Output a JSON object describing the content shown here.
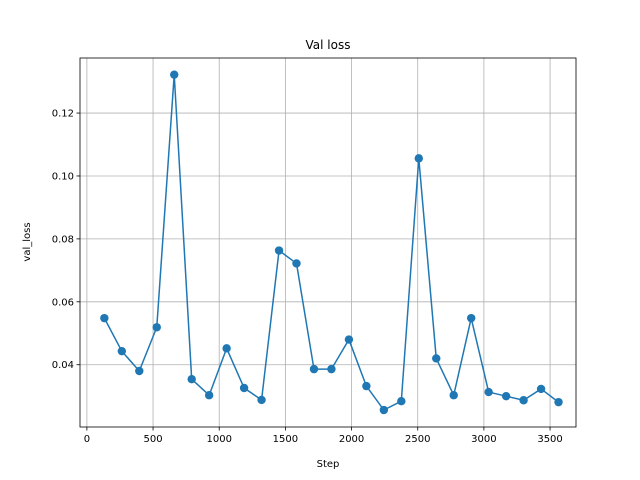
{
  "chart_data": {
    "type": "line",
    "title": "Val loss",
    "xlabel": "Step",
    "ylabel": "val_loss",
    "xlim": [
      -52,
      3696
    ],
    "ylim": [
      0.0202,
      0.1375
    ],
    "xticks": [
      0,
      500,
      1000,
      1500,
      2000,
      2500,
      3000,
      3500
    ],
    "yticks": [
      0.04,
      0.06,
      0.08,
      0.1,
      0.12
    ],
    "ytick_labels": [
      "0.04",
      "0.06",
      "0.08",
      "0.10",
      "0.12"
    ],
    "grid": true,
    "series": [
      {
        "name": "",
        "color": "#1f77b4",
        "marker": "circle",
        "x": [
          132,
          264,
          396,
          528,
          660,
          792,
          924,
          1056,
          1188,
          1320,
          1452,
          1584,
          1716,
          1848,
          1980,
          2112,
          2244,
          2376,
          2508,
          2640,
          2772,
          2904,
          3036,
          3168,
          3300,
          3432,
          3564
        ],
        "y": [
          0.0548,
          0.0443,
          0.038,
          0.0519,
          0.1322,
          0.0354,
          0.0303,
          0.0452,
          0.0326,
          0.0288,
          0.0763,
          0.0722,
          0.0386,
          0.0386,
          0.048,
          0.0332,
          0.0256,
          0.0284,
          0.1056,
          0.042,
          0.0303,
          0.0548,
          0.0313,
          0.03,
          0.0287,
          0.0323,
          0.0281
        ]
      }
    ]
  }
}
